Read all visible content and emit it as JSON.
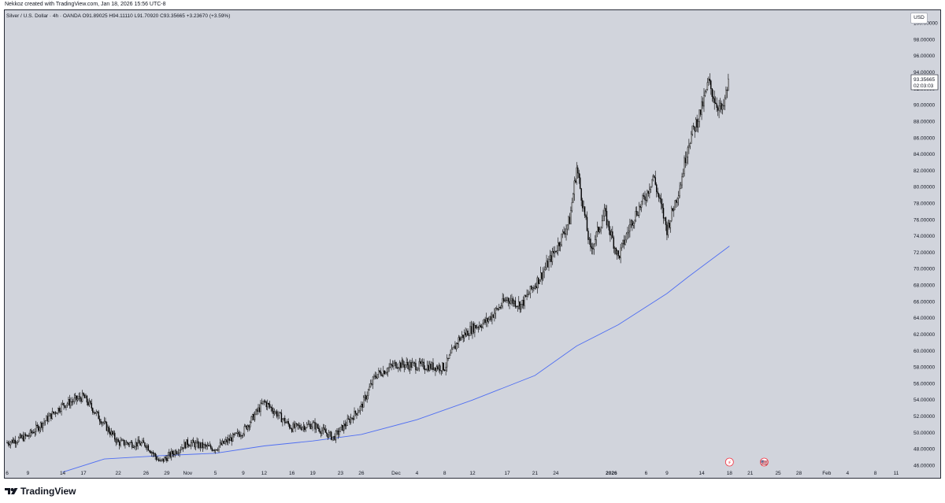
{
  "header": {
    "attribution": "Nekkoz created with TradingView.com, Jan 18, 2026 15:56 UTC-8",
    "legend": "Silver / U.S. Dollar · 4h · OANDA  O91.89025  H94.11110  L91.70920  C93.35665  +3.23670 (+3.59%)"
  },
  "currency_label": "USD",
  "footer": {
    "brand": "TradingView"
  },
  "last_price": {
    "value": "93.35665",
    "countdown": "02:03:03"
  },
  "events": [
    {
      "name": "earnings-flash-icon",
      "glyph": "⚡",
      "color": "#f23645"
    },
    {
      "name": "us-flag-icon",
      "glyph": "🇺🇸",
      "color": "#f23645"
    }
  ],
  "colors": {
    "background": "#d1d4dc",
    "candle": "#000000",
    "moving_average": "#4f6ef2",
    "axis_text": "#131722"
  },
  "chart_data": {
    "type": "candlestick",
    "title": "Silver / U.S. Dollar · 4h · OANDA",
    "ylim": [
      44.6,
      101.5
    ],
    "y_ticks": [
      "100.00000",
      "98.00000",
      "96.00000",
      "94.00000",
      "92.00000",
      "90.00000",
      "88.00000",
      "86.00000",
      "84.00000",
      "82.00000",
      "80.00000",
      "78.00000",
      "76.00000",
      "74.00000",
      "72.00000",
      "70.00000",
      "68.00000",
      "66.00000",
      "64.00000",
      "62.00000",
      "60.00000",
      "58.00000",
      "56.00000",
      "54.00000",
      "52.00000",
      "50.00000",
      "48.00000",
      "46.00000"
    ],
    "x_ticks": [
      "6",
      "9",
      "14",
      "17",
      "22",
      "26",
      "29",
      "Nov",
      "5",
      "9",
      "12",
      "16",
      "19",
      "23",
      "26",
      "Dec",
      "4",
      "8",
      "12",
      "17",
      "21",
      "24",
      "2026",
      "6",
      "9",
      "14",
      "18",
      "21",
      "25",
      "28",
      "Feb",
      "4",
      "8",
      "11"
    ],
    "price_path": [
      [
        "Oct 6",
        48.8
      ],
      [
        "Oct 9",
        49.6
      ],
      [
        "Oct 14",
        53.4
      ],
      [
        "Oct 17",
        54.4
      ],
      [
        "Oct 22",
        48.8
      ],
      [
        "Oct 26",
        48.6
      ],
      [
        "Oct 28",
        46.4
      ],
      [
        "Nov 1",
        48.8
      ],
      [
        "Nov 4",
        48.2
      ],
      [
        "Nov 5",
        48.1
      ],
      [
        "Nov 9",
        50.2
      ],
      [
        "Nov 12",
        53.8
      ],
      [
        "Nov 16",
        50.6
      ],
      [
        "Nov 19",
        51.0
      ],
      [
        "Nov 22",
        49.4
      ],
      [
        "Nov 26",
        53.2
      ],
      [
        "Nov 28",
        57.0
      ],
      [
        "Dec 1",
        58.4
      ],
      [
        "Dec 4",
        58.2
      ],
      [
        "Dec 8",
        58.0
      ],
      [
        "Dec 10",
        61.4
      ],
      [
        "Dec 12",
        62.8
      ],
      [
        "Dec 14",
        63.6
      ],
      [
        "Dec 17",
        66.4
      ],
      [
        "Dec 19",
        65.6
      ],
      [
        "Dec 22",
        69.4
      ],
      [
        "Dec 24",
        72.4
      ],
      [
        "Dec 26",
        76.0
      ],
      [
        "Dec 27",
        82.4
      ],
      [
        "Dec 29",
        72.2
      ],
      [
        "Dec 31",
        76.8
      ],
      [
        "Jan 2",
        71.4
      ],
      [
        "Jan 4",
        76.0
      ],
      [
        "Jan 6",
        79.0
      ],
      [
        "Jan 7",
        81.4
      ],
      [
        "Jan 9",
        74.8
      ],
      [
        "Jan 11",
        80.6
      ],
      [
        "Jan 12",
        85.2
      ],
      [
        "Jan 14",
        89.6
      ],
      [
        "Jan 15",
        92.8
      ],
      [
        "Jan 16",
        90.4
      ],
      [
        "Jan 17",
        89.2
      ],
      [
        "Jan 18",
        93.4
      ]
    ],
    "moving_average": [
      [
        "Oct 14",
        45.2
      ],
      [
        "Oct 20",
        46.8
      ],
      [
        "Oct 28",
        47.2
      ],
      [
        "Nov 5",
        47.5
      ],
      [
        "Nov 12",
        48.4
      ],
      [
        "Nov 19",
        49.0
      ],
      [
        "Nov 26",
        49.8
      ],
      [
        "Dec 4",
        51.6
      ],
      [
        "Dec 12",
        54.0
      ],
      [
        "Dec 21",
        57.0
      ],
      [
        "Dec 27",
        60.6
      ],
      [
        "Jan 2",
        63.2
      ],
      [
        "Jan 9",
        67.0
      ],
      [
        "Jan 12",
        69.0
      ],
      [
        "Jan 18",
        72.8
      ]
    ]
  }
}
